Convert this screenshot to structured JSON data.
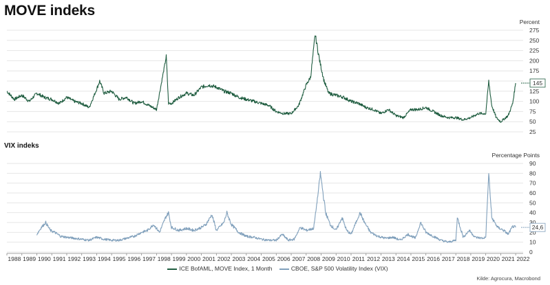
{
  "title": "MOVE indeks",
  "subtitle": "VIX indeks",
  "source": "Kilde: Agrocura, Macrobond",
  "chart_data": [
    {
      "type": "line",
      "title": "MOVE indeks",
      "ylabel": "Percent",
      "ylim": [
        25,
        275
      ],
      "yticks": [
        25,
        50,
        75,
        100,
        125,
        150,
        175,
        200,
        225,
        250,
        275
      ],
      "xlim": [
        1988,
        2022.5
      ],
      "last_value_label": "145",
      "series": [
        {
          "name": "ICE BofAML, MOVE Index, 1 Month",
          "color": "#1e5c3f",
          "x": [
            1988.0,
            1988.5,
            1989.0,
            1989.5,
            1990.0,
            1990.5,
            1991.0,
            1991.5,
            1992.0,
            1992.5,
            1993.0,
            1993.5,
            1994.0,
            1994.2,
            1994.5,
            1995.0,
            1995.5,
            1996.0,
            1996.5,
            1997.0,
            1997.5,
            1998.0,
            1998.65,
            1998.8,
            1999.0,
            1999.5,
            2000.0,
            2000.5,
            2001.0,
            2001.5,
            2002.0,
            2002.5,
            2003.0,
            2003.5,
            2004.0,
            2004.5,
            2005.0,
            2005.5,
            2006.0,
            2006.5,
            2007.0,
            2007.5,
            2008.0,
            2008.3,
            2008.6,
            2008.9,
            2009.2,
            2009.5,
            2010.0,
            2010.5,
            2011.0,
            2011.5,
            2012.0,
            2012.5,
            2013.0,
            2013.5,
            2014.0,
            2014.5,
            2015.0,
            2015.5,
            2016.0,
            2016.5,
            2017.0,
            2017.5,
            2018.0,
            2018.5,
            2019.0,
            2019.5,
            2020.0,
            2020.2,
            2020.4,
            2020.7,
            2021.0,
            2021.5,
            2021.8,
            2022.0
          ],
          "values": [
            125,
            105,
            115,
            100,
            120,
            110,
            105,
            95,
            110,
            100,
            95,
            85,
            130,
            150,
            120,
            125,
            105,
            110,
            95,
            100,
            90,
            80,
            210,
            95,
            95,
            110,
            120,
            115,
            135,
            140,
            135,
            125,
            120,
            110,
            105,
            100,
            95,
            90,
            75,
            70,
            70,
            90,
            140,
            160,
            265,
            200,
            150,
            120,
            115,
            110,
            100,
            95,
            85,
            80,
            70,
            80,
            65,
            60,
            80,
            80,
            85,
            75,
            65,
            60,
            60,
            55,
            60,
            70,
            70,
            150,
            90,
            60,
            50,
            65,
            95,
            145
          ]
        }
      ]
    },
    {
      "type": "line",
      "title": "VIX indeks",
      "ylabel": "Percentage Points",
      "ylim": [
        0,
        90
      ],
      "yticks": [
        0,
        10,
        20,
        30,
        40,
        50,
        60,
        70,
        80,
        90
      ],
      "xlim": [
        1988,
        2022.5
      ],
      "xticks": [
        "1988",
        "1989",
        "1990",
        "1991",
        "1992",
        "1993",
        "1994",
        "1995",
        "1996",
        "1997",
        "1998",
        "1999",
        "2000",
        "2001",
        "2002",
        "2003",
        "2004",
        "2005",
        "2006",
        "2007",
        "2008",
        "2009",
        "2010",
        "2011",
        "2012",
        "2013",
        "2014",
        "2015",
        "2016",
        "2017",
        "2018",
        "2019",
        "2020",
        "2021",
        "2022"
      ],
      "last_value_label": "24,6",
      "series": [
        {
          "name": "CBOE, S&P 500 Volatility Index (VIX)",
          "color": "#7f9fbb",
          "x": [
            1990.0,
            1990.3,
            1990.6,
            1990.9,
            1991.2,
            1991.6,
            1992.0,
            1992.5,
            1993.0,
            1993.5,
            1994.0,
            1994.5,
            1995.0,
            1995.5,
            1996.0,
            1996.5,
            1997.0,
            1997.4,
            1997.8,
            1998.2,
            1998.6,
            1998.8,
            1999.0,
            1999.5,
            2000.0,
            2000.5,
            2001.0,
            2001.3,
            2001.7,
            2002.0,
            2002.5,
            2002.7,
            2003.0,
            2003.5,
            2004.0,
            2004.5,
            2005.0,
            2005.5,
            2006.0,
            2006.4,
            2006.8,
            2007.2,
            2007.6,
            2008.0,
            2008.5,
            2008.8,
            2008.95,
            2009.3,
            2009.6,
            2010.0,
            2010.4,
            2010.7,
            2011.0,
            2011.6,
            2011.9,
            2012.3,
            2012.8,
            2013.3,
            2013.8,
            2014.3,
            2014.8,
            2015.3,
            2015.65,
            2016.0,
            2016.5,
            2017.0,
            2017.5,
            2018.0,
            2018.1,
            2018.5,
            2018.9,
            2019.3,
            2019.8,
            2020.0,
            2020.2,
            2020.4,
            2020.8,
            2021.2,
            2021.5,
            2021.8,
            2022.0
          ],
          "values": [
            18,
            25,
            30,
            22,
            20,
            16,
            15,
            14,
            13,
            12,
            15,
            13,
            12,
            12,
            14,
            16,
            20,
            22,
            28,
            20,
            35,
            40,
            25,
            22,
            24,
            22,
            25,
            28,
            38,
            22,
            30,
            40,
            28,
            20,
            16,
            15,
            13,
            12,
            12,
            18,
            12,
            13,
            25,
            22,
            24,
            60,
            80,
            40,
            28,
            22,
            35,
            22,
            18,
            40,
            30,
            20,
            16,
            14,
            15,
            12,
            18,
            14,
            30,
            20,
            16,
            12,
            10,
            12,
            35,
            15,
            22,
            15,
            14,
            15,
            80,
            35,
            25,
            22,
            18,
            26,
            25
          ]
        }
      ]
    }
  ],
  "legend": {
    "move_label": "ICE BofAML, MOVE Index, 1 Month",
    "vix_label": "CBOE, S&P 500 Volatility Index (VIX)"
  }
}
